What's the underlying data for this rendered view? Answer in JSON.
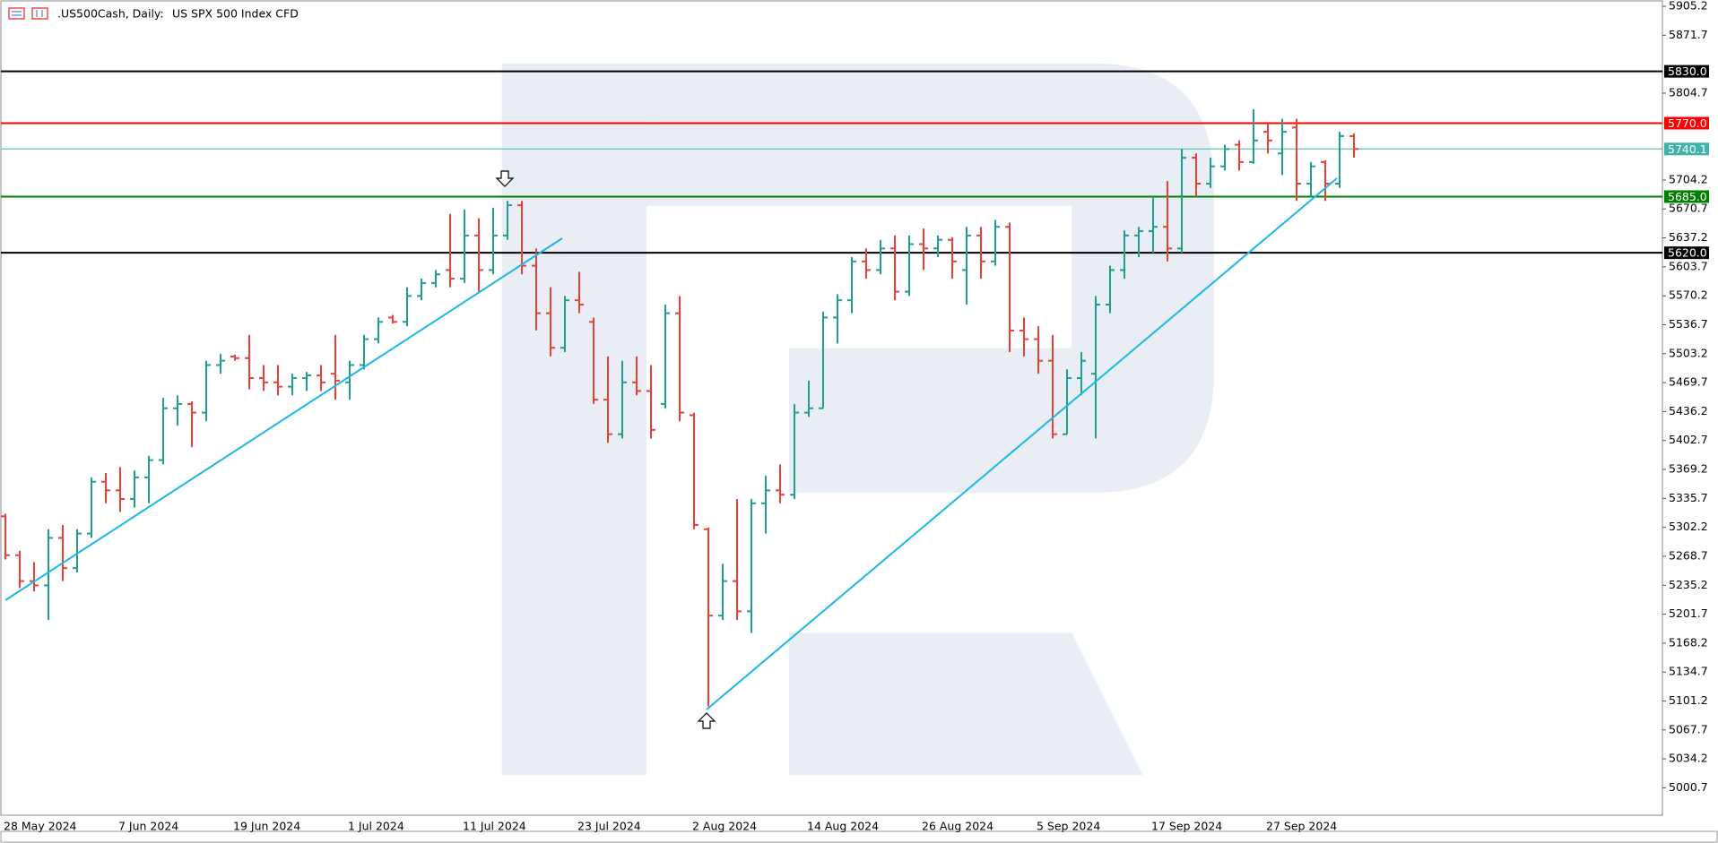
{
  "chart_data": {
    "type": "ohlc",
    "title": ".US500Cash, Daily:",
    "subtitle": "US SPX 500 Index CFD",
    "categories": [
      "28 May 2024",
      null,
      null,
      null,
      null,
      null,
      null,
      null,
      "7 Jun 2024",
      null,
      null,
      null,
      null,
      null,
      null,
      null,
      "19 Jun 2024",
      null,
      null,
      null,
      null,
      null,
      null,
      null,
      "1 Jul 2024",
      null,
      null,
      null,
      null,
      null,
      null,
      null,
      "11 Jul 2024",
      null,
      null,
      null,
      null,
      null,
      null,
      null,
      "23 Jul 2024",
      null,
      null,
      null,
      null,
      null,
      null,
      null,
      "2 Aug 2024",
      null,
      null,
      null,
      null,
      null,
      null,
      null,
      "14 Aug 2024",
      null,
      null,
      null,
      null,
      null,
      null,
      null,
      "26 Aug 2024",
      null,
      null,
      null,
      null,
      null,
      null,
      null,
      "5 Sep 2024",
      null,
      null,
      null,
      null,
      null,
      null,
      null,
      "17 Sep 2024",
      null,
      null,
      null,
      null,
      null,
      null,
      null,
      "27 Sep 2024",
      null,
      null,
      null,
      null,
      null,
      null
    ],
    "open": [
      5315,
      5270,
      5240,
      5235,
      5290,
      5255,
      5295,
      5355,
      5345,
      5335,
      5360,
      5380,
      5440,
      5445,
      5435,
      5490,
      5500,
      5498,
      5475,
      5470,
      5465,
      5475,
      5478,
      5480,
      5470,
      5490,
      5520,
      5545,
      5540,
      5570,
      5585,
      5600,
      5590,
      5640,
      5600,
      5640,
      5675,
      5605,
      5550,
      5510,
      5565,
      5540,
      5450,
      5410,
      5470,
      5460,
      5445,
      5550,
      5432,
      5300,
      5200,
      5240,
      5205,
      5330,
      5345,
      5340,
      5435,
      5440,
      5545,
      5565,
      5610,
      5600,
      5625,
      5575,
      5630,
      5625,
      5635,
      5600,
      5640,
      5610,
      5650,
      5530,
      5520,
      5495,
      5410,
      5475,
      5480,
      5560,
      5600,
      5640,
      5645,
      5650,
      5625,
      5730,
      5700,
      5720,
      5745,
      5725,
      5760,
      5735,
      5765,
      5700,
      5725,
      5700,
      5755
    ],
    "high": [
      5318,
      5275,
      5262,
      5300,
      5305,
      5300,
      5360,
      5365,
      5372,
      5368,
      5385,
      5452,
      5455,
      5448,
      5495,
      5503,
      5502,
      5525,
      5490,
      5490,
      5480,
      5482,
      5490,
      5525,
      5495,
      5525,
      5545,
      5548,
      5580,
      5590,
      5600,
      5665,
      5670,
      5660,
      5672,
      5680,
      5680,
      5625,
      5580,
      5570,
      5598,
      5545,
      5500,
      5495,
      5500,
      5490,
      5560,
      5570,
      5435,
      5302,
      5260,
      5335,
      5335,
      5362,
      5375,
      5445,
      5472,
      5552,
      5572,
      5615,
      5625,
      5635,
      5640,
      5640,
      5648,
      5640,
      5638,
      5650,
      5650,
      5658,
      5655,
      5545,
      5535,
      5525,
      5485,
      5505,
      5570,
      5605,
      5646,
      5650,
      5685,
      5703,
      5740,
      5735,
      5730,
      5745,
      5750,
      5786,
      5770,
      5775,
      5775,
      5725,
      5727,
      5760,
      5758
    ],
    "low": [
      5265,
      5232,
      5228,
      5195,
      5240,
      5250,
      5290,
      5330,
      5320,
      5325,
      5330,
      5375,
      5420,
      5395,
      5425,
      5480,
      5495,
      5462,
      5460,
      5455,
      5455,
      5460,
      5460,
      5450,
      5450,
      5485,
      5515,
      5538,
      5535,
      5565,
      5580,
      5580,
      5585,
      5575,
      5595,
      5635,
      5595,
      5530,
      5500,
      5505,
      5550,
      5445,
      5400,
      5405,
      5455,
      5405,
      5440,
      5425,
      5300,
      5095,
      5195,
      5195,
      5180,
      5295,
      5330,
      5335,
      5430,
      5440,
      5515,
      5550,
      5590,
      5595,
      5565,
      5570,
      5600,
      5615,
      5590,
      5560,
      5590,
      5605,
      5505,
      5500,
      5480,
      5405,
      5410,
      5455,
      5405,
      5550,
      5590,
      5615,
      5620,
      5610,
      5620,
      5685,
      5695,
      5715,
      5715,
      5723,
      5735,
      5710,
      5680,
      5685,
      5680,
      5695,
      5730
    ],
    "close": [
      5270,
      5240,
      5235,
      5290,
      5255,
      5295,
      5355,
      5345,
      5335,
      5360,
      5380,
      5440,
      5445,
      5435,
      5490,
      5495,
      5498,
      5475,
      5470,
      5465,
      5475,
      5478,
      5470,
      5472,
      5490,
      5520,
      5540,
      5540,
      5570,
      5585,
      5595,
      5590,
      5640,
      5600,
      5640,
      5675,
      5605,
      5550,
      5510,
      5565,
      5560,
      5450,
      5410,
      5470,
      5460,
      5415,
      5550,
      5435,
      5305,
      5200,
      5240,
      5205,
      5330,
      5345,
      5340,
      5435,
      5440,
      5545,
      5565,
      5610,
      5600,
      5625,
      5575,
      5630,
      5625,
      5635,
      5610,
      5640,
      5610,
      5650,
      5530,
      5520,
      5495,
      5410,
      5475,
      5495,
      5560,
      5600,
      5640,
      5645,
      5650,
      5625,
      5730,
      5700,
      5720,
      5740,
      5725,
      5750,
      5750,
      5760,
      5700,
      5720,
      5700,
      5755,
      5740.1
    ],
    "up_color": "#1f9e93",
    "down_color": "#eb3f3a",
    "ylim": [
      4969,
      5911.5
    ],
    "yticks": [
      5905.2,
      5871.7,
      5804.7,
      5704.2,
      5670.7,
      5637.2,
      5603.7,
      5570.2,
      5536.7,
      5503.2,
      5469.7,
      5436.2,
      5402.7,
      5369.2,
      5335.7,
      5302.2,
      5268.7,
      5235.2,
      5201.7,
      5168.2,
      5134.7,
      5101.2,
      5067.7,
      5034.2,
      5000.7
    ],
    "levels": [
      {
        "value": 5830,
        "label": "5830.0",
        "color": "#000000"
      },
      {
        "value": 5770,
        "label": "5770.0",
        "color": "#ff0000"
      },
      {
        "value": 5740.1,
        "label": "5740.1",
        "color": "#3fb3aa"
      },
      {
        "value": 5685,
        "label": "5685.0",
        "color": "#008000"
      },
      {
        "value": 5620,
        "label": "5620.0",
        "color": "#000000"
      }
    ]
  }
}
